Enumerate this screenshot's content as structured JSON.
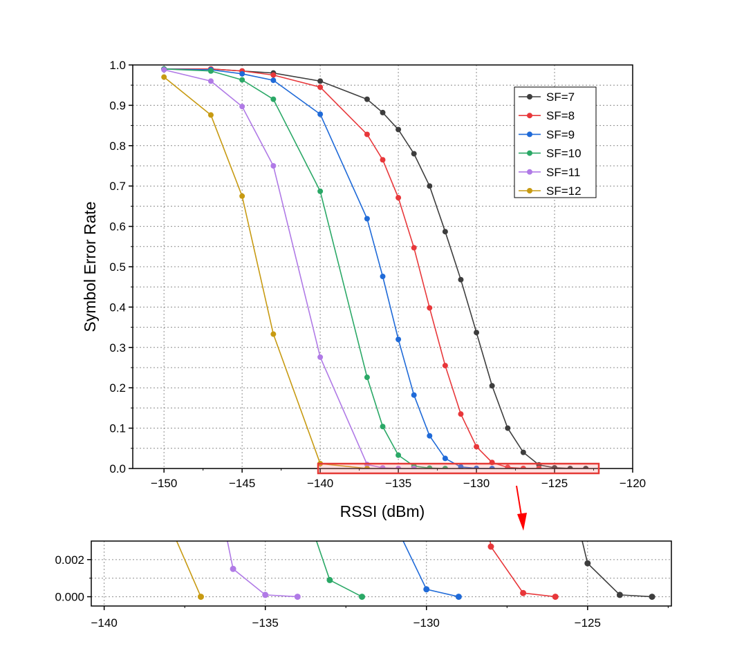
{
  "chart_data": [
    {
      "type": "line",
      "title": "",
      "xlabel": "RSSI (dBm)",
      "ylabel": "Symbol Error Rate",
      "xlim": [
        -152,
        -120
      ],
      "ylim": [
        0,
        1.0
      ],
      "xticks": [
        -150,
        -145,
        -140,
        -135,
        -130,
        -125,
        -120
      ],
      "xtick_labels": [
        "−150",
        "−145",
        "−140",
        "−135",
        "−130",
        "−125",
        "−120"
      ],
      "yticks": [
        0.0,
        0.1,
        0.2,
        0.3,
        0.4,
        0.5,
        0.6,
        0.7,
        0.8,
        0.9,
        1.0
      ],
      "ytick_labels": [
        "0.0",
        "0.1",
        "0.2",
        "0.3",
        "0.4",
        "0.5",
        "0.6",
        "0.7",
        "0.8",
        "0.9",
        "1.0"
      ],
      "grid": true,
      "legend_position": "top-right",
      "series": [
        {
          "name": "SF=7",
          "color": "#3d3d3d",
          "x": [
            -150,
            -147,
            -145,
            -143,
            -140,
            -137,
            -136,
            -135,
            -134,
            -133,
            -132,
            -131,
            -130,
            -129,
            -128,
            -127,
            -126,
            -125,
            -124,
            -123
          ],
          "y": [
            0.99,
            0.99,
            0.985,
            0.98,
            0.96,
            0.915,
            0.882,
            0.84,
            0.78,
            0.7,
            0.587,
            0.468,
            0.337,
            0.205,
            0.1,
            0.04,
            0.009,
            0.0018,
            0.0001,
            0.0
          ]
        },
        {
          "name": "SF=8",
          "color": "#e8373a",
          "x": [
            -150,
            -147,
            -145,
            -143,
            -140,
            -137,
            -136,
            -135,
            -134,
            -133,
            -132,
            -131,
            -130,
            -129,
            -128,
            -127,
            -126
          ],
          "y": [
            0.99,
            0.99,
            0.985,
            0.975,
            0.945,
            0.828,
            0.765,
            0.671,
            0.547,
            0.398,
            0.255,
            0.135,
            0.054,
            0.015,
            0.0027,
            0.0002,
            0.0
          ]
        },
        {
          "name": "SF=9",
          "color": "#1f6ad8",
          "x": [
            -150,
            -147,
            -145,
            -143,
            -140,
            -137,
            -136,
            -135,
            -134,
            -133,
            -132,
            -131,
            -130,
            -129
          ],
          "y": [
            0.99,
            0.988,
            0.978,
            0.962,
            0.878,
            0.619,
            0.476,
            0.32,
            0.182,
            0.081,
            0.025,
            0.004,
            0.0004,
            0.0
          ]
        },
        {
          "name": "SF=10",
          "color": "#2aa866",
          "x": [
            -150,
            -147,
            -145,
            -143,
            -140,
            -137,
            -136,
            -135,
            -134,
            -133,
            -132
          ],
          "y": [
            0.99,
            0.985,
            0.963,
            0.915,
            0.687,
            0.226,
            0.104,
            0.033,
            0.006,
            0.0009,
            0.0
          ]
        },
        {
          "name": "SF=11",
          "color": "#b07ae6",
          "x": [
            -150,
            -147,
            -145,
            -143,
            -140,
            -137,
            -136,
            -135,
            -134
          ],
          "y": [
            0.988,
            0.96,
            0.897,
            0.75,
            0.276,
            0.01,
            0.0015,
            0.0001,
            0.0
          ]
        },
        {
          "name": "SF=12",
          "color": "#c79a12",
          "x": [
            -150,
            -147,
            -145,
            -143,
            -140,
            -137
          ],
          "y": [
            0.97,
            0.876,
            0.675,
            0.333,
            0.012,
            0.0
          ]
        }
      ]
    },
    {
      "type": "line",
      "title": "",
      "xlabel": "",
      "ylabel": "",
      "xlim": [
        -140.4,
        -122.4
      ],
      "ylim": [
        -0.0005,
        0.003
      ],
      "xticks": [
        -140,
        -135,
        -130,
        -125
      ],
      "xtick_labels": [
        "−140",
        "−135",
        "−130",
        "−125"
      ],
      "yticks": [
        0.0,
        0.002
      ],
      "ytick_labels": [
        "0.000",
        "0.002"
      ],
      "grid": true,
      "series_ref": "same series as main chart (zoomed view of SER near 0)"
    }
  ]
}
